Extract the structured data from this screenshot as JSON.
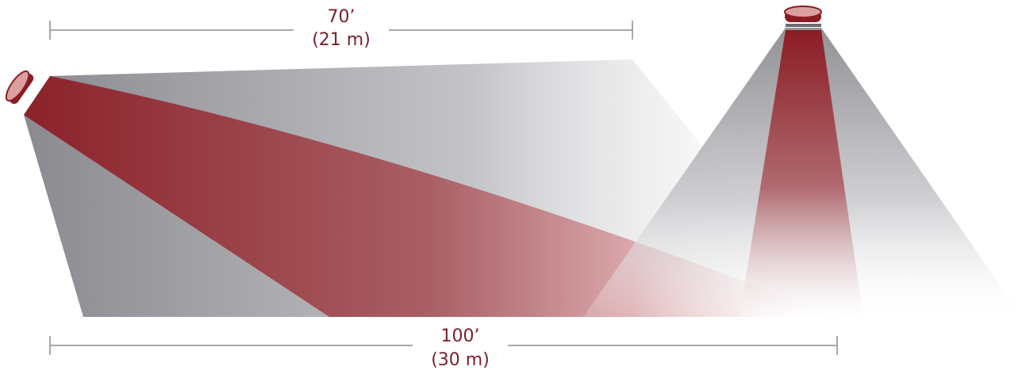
{
  "top_dimension": {
    "feet": "70’",
    "meters": "(21 m)"
  },
  "bottom_dimension": {
    "feet": "100’",
    "meters": "(30 m)"
  }
}
